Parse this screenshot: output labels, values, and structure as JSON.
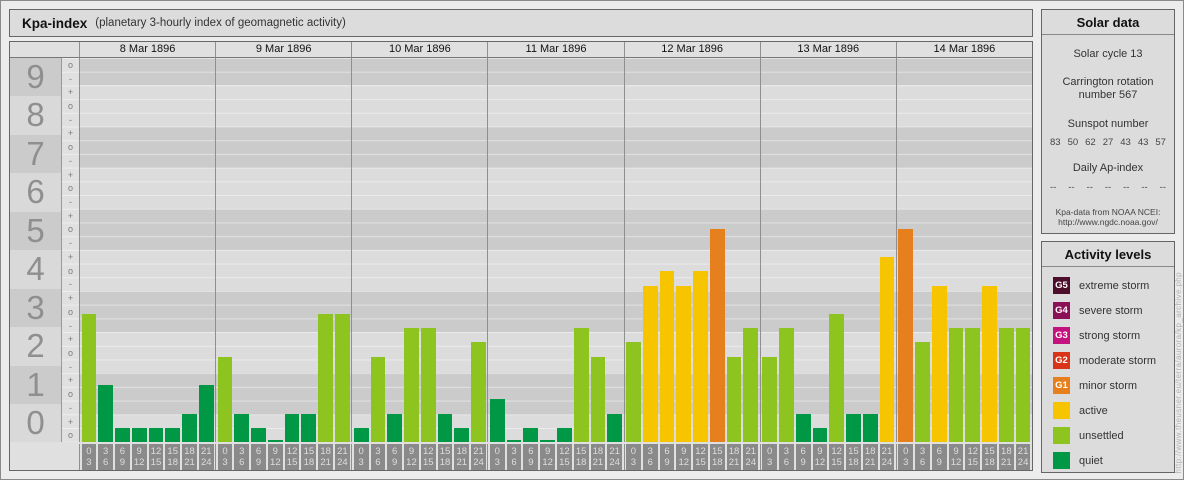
{
  "header": {
    "title": "Kpa-index",
    "subtitle": "(planetary 3-hourly index of geomagnetic activity)"
  },
  "chart_data": {
    "type": "bar",
    "title": "Kpa-index",
    "subtitle": "(planetary 3-hourly index of geomagnetic activity)",
    "ylabel_numbers": [
      "9",
      "8",
      "7",
      "6",
      "5",
      "4",
      "3",
      "2",
      "1",
      "0"
    ],
    "y_sub_labels": [
      "o",
      "-",
      "+",
      "o",
      "-",
      "+",
      "o",
      "-",
      "+",
      "o",
      "-",
      "+",
      "o",
      "-",
      "+",
      "o",
      "-",
      "+",
      "o",
      "-",
      "+",
      "o",
      "-",
      "+",
      "o",
      "-",
      "+",
      "o"
    ],
    "ylim": [
      "0o",
      "9o"
    ],
    "x_intervals": [
      [
        "0",
        "3"
      ],
      [
        "3",
        "6"
      ],
      [
        "6",
        "9"
      ],
      [
        "9",
        "12"
      ],
      [
        "12",
        "15"
      ],
      [
        "15",
        "18"
      ],
      [
        "18",
        "21"
      ],
      [
        "21",
        "24"
      ]
    ],
    "days": [
      {
        "date": "8 Mar 1896",
        "kp": [
          "3o",
          "1+",
          "0+",
          "0+",
          "0+",
          "0+",
          "1-",
          "1+"
        ]
      },
      {
        "date": "9 Mar 1896",
        "kp": [
          "2o",
          "1-",
          "0+",
          "0o",
          "1-",
          "1-",
          "3o",
          "3o"
        ]
      },
      {
        "date": "10 Mar 1896",
        "kp": [
          "0+",
          "2o",
          "1-",
          "3-",
          "3-",
          "1-",
          "0+",
          "2+"
        ]
      },
      {
        "date": "11 Mar 1896",
        "kp": [
          "1o",
          "0o",
          "0+",
          "0o",
          "0+",
          "3-",
          "2o",
          "1-"
        ]
      },
      {
        "date": "12 Mar 1896",
        "kp": [
          "2+",
          "4-",
          "4o",
          "4-",
          "4o",
          "5o",
          "2o",
          "3-"
        ]
      },
      {
        "date": "13 Mar 1896",
        "kp": [
          "2o",
          "3-",
          "1-",
          "0+",
          "3o",
          "1-",
          "1-",
          "4+"
        ]
      },
      {
        "date": "14 Mar 1896",
        "kp": [
          "5o",
          "2+",
          "4-",
          "3-",
          "3-",
          "4-",
          "3-",
          "3-"
        ]
      }
    ]
  },
  "solar_panel": {
    "title": "Solar data",
    "solar_cycle": "Solar cycle 13",
    "carrington_line1": "Carrington rotation",
    "carrington_line2": "number 567",
    "sunspot_title": "Sunspot number",
    "sunspot_values": [
      "83",
      "50",
      "62",
      "27",
      "43",
      "43",
      "57"
    ],
    "ap_title": "Daily Ap-index",
    "ap_values": [
      "--",
      "--",
      "--",
      "--",
      "--",
      "--",
      "--"
    ],
    "source_line1": "Kpa-data from NOAA NCEI:",
    "source_line2": "http://www.ngdc.noaa.gov/"
  },
  "legend": {
    "title": "Activity levels",
    "items": [
      {
        "code": "G5",
        "label": "extreme storm",
        "color": "#4d0e2c"
      },
      {
        "code": "G4",
        "label": "severe storm",
        "color": "#8c1055"
      },
      {
        "code": "G3",
        "label": "strong storm",
        "color": "#c4137e"
      },
      {
        "code": "G2",
        "label": "moderate storm",
        "color": "#da3418"
      },
      {
        "code": "G1",
        "label": "minor storm",
        "color": "#e67f1d"
      },
      {
        "code": null,
        "label": "active",
        "color": "#f6c500"
      },
      {
        "code": null,
        "label": "unsettled",
        "color": "#8dc41f"
      },
      {
        "code": null,
        "label": "quiet",
        "color": "#009845"
      }
    ]
  },
  "watermark": "http://www.theusner.eu/terra/aurora/kp_archive.php"
}
